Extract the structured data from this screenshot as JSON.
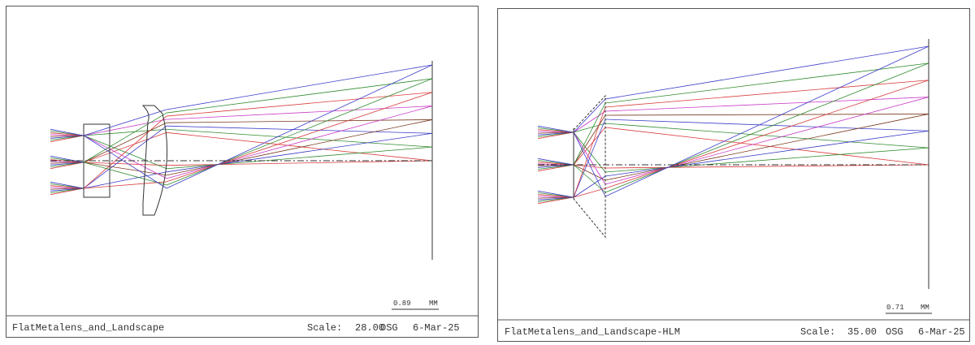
{
  "panels": [
    {
      "scale_bar": {
        "value": "0.89",
        "unit": "MM"
      },
      "footer": {
        "name": "FlatMetalens_and_Landscape",
        "scale_label": "Scale:",
        "scale": "28.00",
        "units": "OSG",
        "date": "6-Mar-25"
      }
    },
    {
      "scale_bar": {
        "value": "0.71",
        "unit": "MM"
      },
      "footer": {
        "name": "FlatMetalens_and_Landscape-HLM",
        "scale_label": "Scale:",
        "scale": "35.00",
        "units": "OSG",
        "date": "6-Mar-25"
      }
    }
  ]
}
